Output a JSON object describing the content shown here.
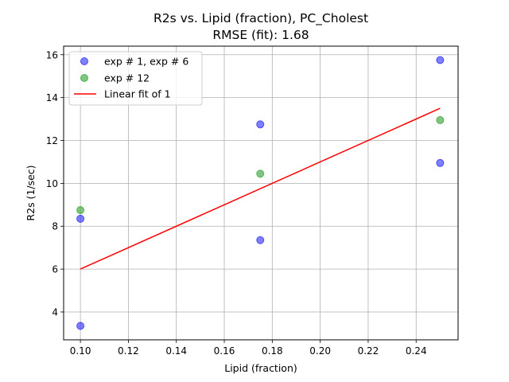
{
  "chart_data": {
    "type": "scatter",
    "title": "R2s vs. Lipid (fraction), PC_Cholest",
    "subtitle": "RMSE (fit): 1.68",
    "xlabel": "Lipid (fraction)",
    "ylabel": "R2s (1/sec)",
    "xlim": [
      0.093,
      0.2575
    ],
    "ylim": [
      2.7,
      16.4
    ],
    "xticks": [
      0.1,
      0.12,
      0.14,
      0.16,
      0.18,
      0.2,
      0.22,
      0.24
    ],
    "xtick_labels": [
      "0.10",
      "0.12",
      "0.14",
      "0.16",
      "0.18",
      "0.20",
      "0.22",
      "0.24"
    ],
    "yticks": [
      4,
      6,
      8,
      10,
      12,
      14,
      16
    ],
    "ytick_labels": [
      "4",
      "6",
      "8",
      "10",
      "12",
      "14",
      "16"
    ],
    "grid": true,
    "legend_position": "top-left",
    "series": [
      {
        "name": "exp # 1, exp # 6",
        "kind": "scatter",
        "color": "#0000ff",
        "points": [
          [
            0.1,
            3.35
          ],
          [
            0.1,
            8.35
          ],
          [
            0.175,
            7.35
          ],
          [
            0.175,
            12.75
          ],
          [
            0.25,
            10.95
          ],
          [
            0.25,
            15.75
          ]
        ]
      },
      {
        "name": "exp # 12",
        "kind": "scatter",
        "color": "#2ca02c",
        "points": [
          [
            0.1,
            8.75
          ],
          [
            0.175,
            10.45
          ],
          [
            0.25,
            12.95
          ]
        ]
      },
      {
        "name": "Linear fit of 1",
        "kind": "line",
        "color": "#ff0000",
        "points": [
          [
            0.1,
            6.0
          ],
          [
            0.25,
            13.5
          ]
        ]
      }
    ]
  }
}
